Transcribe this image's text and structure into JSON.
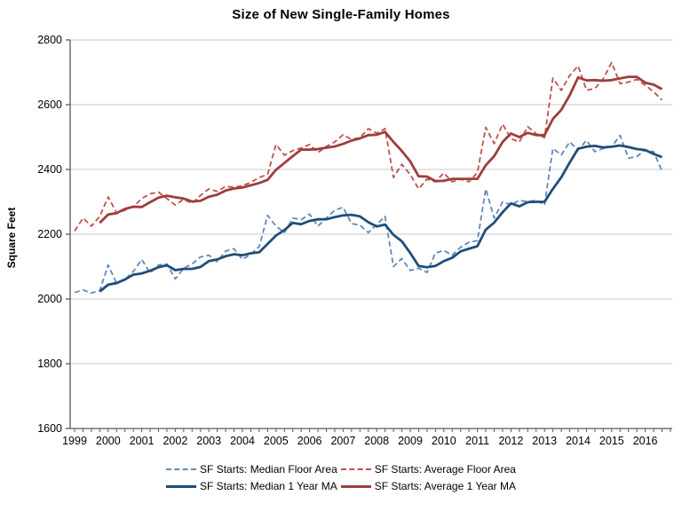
{
  "title": "Size of New Single-Family Homes",
  "y_axis": {
    "label": "Square Feet",
    "ticks": [
      1600,
      1800,
      2000,
      2200,
      2400,
      2600,
      2800
    ],
    "min": 1600,
    "max": 2800
  },
  "x_axis": {
    "year_labels": [
      "1999",
      "2000",
      "2001",
      "2002",
      "2003",
      "2004",
      "2005",
      "2006",
      "2007",
      "2008",
      "2009",
      "2010",
      "2011",
      "2012",
      "2013",
      "2014",
      "2015",
      "2016"
    ],
    "quarters_per_year": 4,
    "n_points": 71
  },
  "colors": {
    "median_dashed": "#6188B8",
    "average_dashed": "#C0504D",
    "median_ma": "#1F4E79",
    "average_ma": "#9E3D3D",
    "gridline": "#C9C9C9",
    "axis": "#595959",
    "text": "#000000"
  },
  "chart_data": {
    "type": "line",
    "title": "Size of New Single-Family Homes",
    "xlabel": "",
    "ylabel": "Square Feet",
    "ylim": [
      1600,
      2800
    ],
    "x_unit": "quarter",
    "x_start": "1999Q1",
    "x_end": "2016Q3",
    "grid": "horizontal",
    "legend_position": "bottom",
    "series": [
      {
        "name": "SF Starts: Median Floor Area",
        "style": "dashed",
        "color": "#6188B8",
        "values": [
          2020,
          2028,
          2018,
          2026,
          2105,
          2048,
          2060,
          2085,
          2122,
          2080,
          2105,
          2108,
          2062,
          2095,
          2108,
          2130,
          2135,
          2115,
          2148,
          2155,
          2122,
          2138,
          2162,
          2258,
          2225,
          2205,
          2250,
          2245,
          2262,
          2225,
          2250,
          2274,
          2283,
          2233,
          2228,
          2205,
          2230,
          2255,
          2100,
          2125,
          2088,
          2095,
          2082,
          2142,
          2150,
          2135,
          2160,
          2175,
          2180,
          2340,
          2250,
          2300,
          2290,
          2305,
          2300,
          2305,
          2290,
          2465,
          2445,
          2485,
          2460,
          2490,
          2455,
          2465,
          2470,
          2505,
          2435,
          2440,
          2460,
          2455,
          2395
        ]
      },
      {
        "name": "SF Starts: Average Floor Area",
        "style": "dashed",
        "color": "#C0504D",
        "values": [
          2210,
          2250,
          2225,
          2255,
          2315,
          2266,
          2274,
          2285,
          2310,
          2325,
          2330,
          2310,
          2290,
          2308,
          2295,
          2320,
          2340,
          2332,
          2348,
          2345,
          2350,
          2360,
          2375,
          2385,
          2477,
          2444,
          2458,
          2466,
          2477,
          2452,
          2471,
          2485,
          2507,
          2493,
          2498,
          2526,
          2512,
          2526,
          2375,
          2416,
          2384,
          2340,
          2370,
          2362,
          2389,
          2362,
          2370,
          2362,
          2390,
          2530,
          2480,
          2540,
          2495,
          2485,
          2532,
          2510,
          2498,
          2682,
          2644,
          2690,
          2720,
          2645,
          2650,
          2680,
          2730,
          2665,
          2670,
          2678,
          2660,
          2640,
          2614
        ]
      },
      {
        "name": "SF Starts: Median 1 Year MA",
        "style": "solid",
        "color": "#1F4E79",
        "window": 4,
        "values": [
          null,
          null,
          null,
          2023,
          2044,
          2049,
          2060,
          2075,
          2079,
          2087,
          2098,
          2104,
          2089,
          2093,
          2093,
          2099,
          2117,
          2122,
          2132,
          2138,
          2135,
          2141,
          2144,
          2170,
          2196,
          2213,
          2235,
          2231,
          2241,
          2246,
          2246,
          2253,
          2258,
          2260,
          2255,
          2237,
          2224,
          2230,
          2198,
          2178,
          2142,
          2102,
          2098,
          2102,
          2117,
          2127,
          2147,
          2155,
          2163,
          2214,
          2236,
          2268,
          2295,
          2286,
          2299,
          2300,
          2300,
          2340,
          2376,
          2421,
          2464,
          2470,
          2473,
          2468,
          2470,
          2474,
          2469,
          2463,
          2460,
          2448,
          2438
        ]
      },
      {
        "name": "SF Starts: Average 1 Year MA",
        "style": "solid",
        "color": "#9E3D3D",
        "window": 4,
        "values": [
          null,
          null,
          null,
          2235,
          2261,
          2265,
          2278,
          2285,
          2284,
          2299,
          2313,
          2319,
          2314,
          2310,
          2301,
          2303,
          2316,
          2322,
          2335,
          2341,
          2344,
          2351,
          2358,
          2368,
          2399,
          2420,
          2441,
          2461,
          2461,
          2463,
          2467,
          2471,
          2479,
          2489,
          2496,
          2506,
          2507,
          2516,
          2485,
          2457,
          2425,
          2379,
          2378,
          2364,
          2365,
          2371,
          2371,
          2371,
          2371,
          2413,
          2441,
          2485,
          2511,
          2500,
          2513,
          2506,
          2506,
          2556,
          2584,
          2629,
          2684,
          2675,
          2676,
          2674,
          2676,
          2681,
          2686,
          2686,
          2668,
          2662,
          2648
        ]
      }
    ]
  }
}
